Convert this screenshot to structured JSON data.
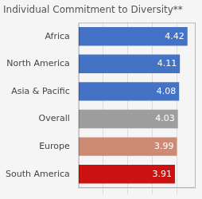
{
  "chart_data": {
    "type": "bar",
    "orientation": "horizontal",
    "title": "Individual Commitment to Diversity**",
    "categories": [
      "Africa",
      "North America",
      "Asia & Pacific",
      "Overall",
      "Europe",
      "South America"
    ],
    "values": [
      4.42,
      4.11,
      4.08,
      4.03,
      3.99,
      3.91
    ],
    "colors": [
      "#4472C4",
      "#4472C4",
      "#4472C4",
      "#9E9E9E",
      "#CD8B76",
      "#CC1111"
    ],
    "xlim": [
      0,
      4.75
    ],
    "xticks": [
      1.0,
      2.0,
      3.0,
      4.0
    ],
    "grid": true,
    "data_labels": true,
    "tick_labels": "y"
  }
}
